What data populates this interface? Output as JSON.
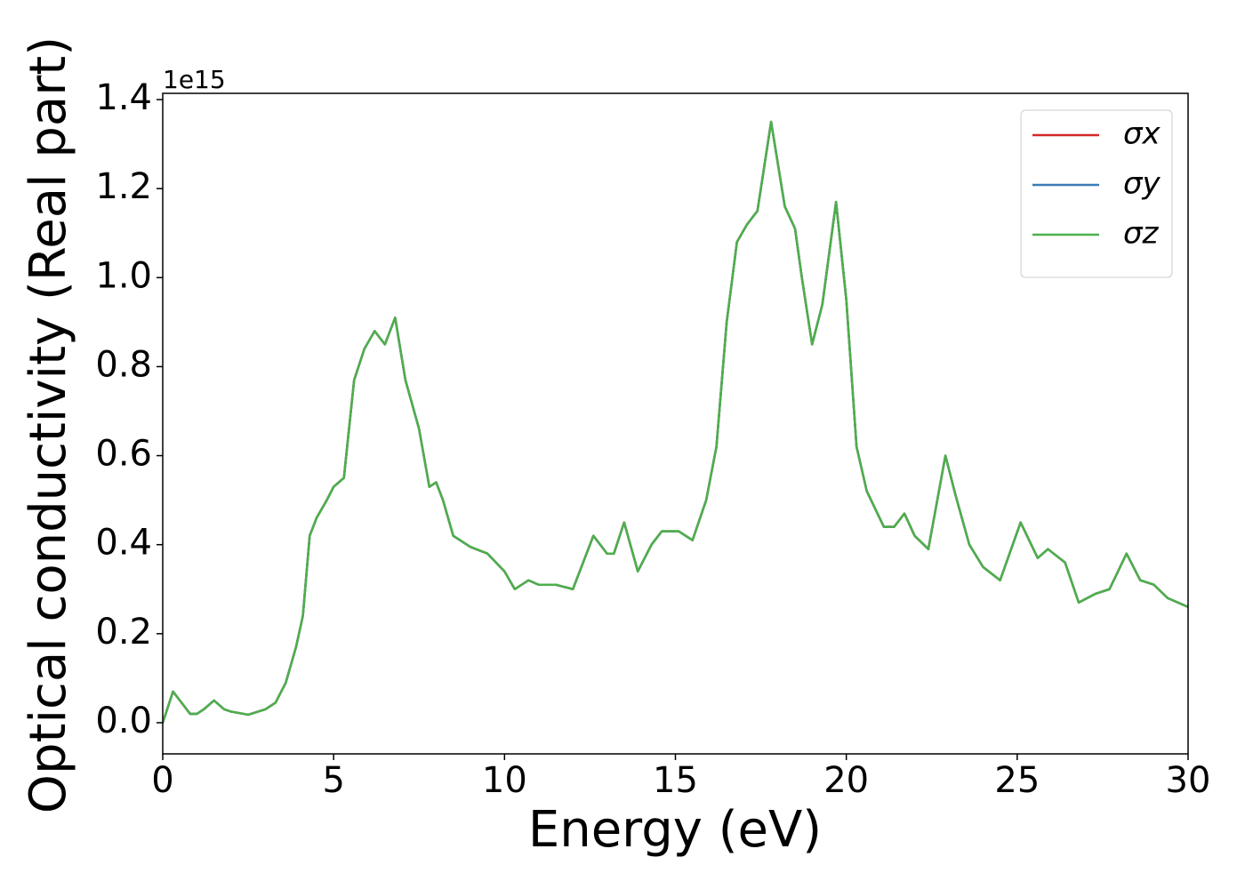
{
  "chart_data": {
    "type": "line",
    "xlabel": "Energy (eV)",
    "ylabel": "Optical conductivity (Real part)",
    "y_offset_text": "1e15",
    "x": [
      0,
      0.3,
      0.5,
      0.8,
      1.0,
      1.2,
      1.5,
      1.8,
      2.0,
      2.5,
      3.0,
      3.3,
      3.6,
      3.9,
      4.1,
      4.3,
      4.5,
      4.8,
      5.0,
      5.3,
      5.6,
      5.9,
      6.2,
      6.5,
      6.8,
      7.1,
      7.5,
      7.8,
      8.0,
      8.2,
      8.5,
      9.0,
      9.5,
      10.0,
      10.3,
      10.7,
      11.0,
      11.5,
      12.0,
      12.6,
      13.0,
      13.2,
      13.5,
      13.9,
      14.3,
      14.6,
      15.1,
      15.5,
      15.9,
      16.2,
      16.5,
      16.8,
      17.1,
      17.4,
      17.8,
      18.2,
      18.5,
      18.7,
      19.0,
      19.3,
      19.7,
      20.0,
      20.3,
      20.6,
      21.1,
      21.4,
      21.7,
      22.0,
      22.4,
      22.9,
      23.2,
      23.6,
      24.0,
      24.5,
      25.1,
      25.6,
      25.9,
      26.4,
      26.8,
      27.3,
      27.7,
      28.2,
      28.6,
      29.0,
      29.4,
      30.0
    ],
    "series": [
      {
        "name": "σx",
        "color": "#d62728",
        "values": [
          0,
          0.07,
          0.05,
          0.02,
          0.02,
          0.03,
          0.05,
          0.03,
          0.025,
          0.018,
          0.03,
          0.045,
          0.09,
          0.17,
          0.24,
          0.42,
          0.46,
          0.5,
          0.53,
          0.55,
          0.77,
          0.84,
          0.88,
          0.85,
          0.91,
          0.77,
          0.66,
          0.53,
          0.54,
          0.5,
          0.42,
          0.395,
          0.38,
          0.34,
          0.3,
          0.32,
          0.31,
          0.31,
          0.3,
          0.42,
          0.38,
          0.38,
          0.45,
          0.34,
          0.4,
          0.43,
          0.43,
          0.41,
          0.5,
          0.62,
          0.9,
          1.08,
          1.12,
          1.15,
          1.35,
          1.16,
          1.11,
          1.0,
          0.85,
          0.94,
          1.17,
          0.95,
          0.62,
          0.52,
          0.44,
          0.44,
          0.47,
          0.42,
          0.39,
          0.6,
          0.51,
          0.4,
          0.35,
          0.32,
          0.45,
          0.37,
          0.39,
          0.36,
          0.27,
          0.29,
          0.3,
          0.38,
          0.32,
          0.31,
          0.28,
          0.26
        ]
      },
      {
        "name": "σy",
        "color": "#3a7bb5",
        "values": [
          0,
          0.07,
          0.05,
          0.02,
          0.02,
          0.03,
          0.05,
          0.03,
          0.025,
          0.018,
          0.03,
          0.045,
          0.09,
          0.17,
          0.24,
          0.42,
          0.46,
          0.5,
          0.53,
          0.55,
          0.77,
          0.84,
          0.88,
          0.85,
          0.91,
          0.77,
          0.66,
          0.53,
          0.54,
          0.5,
          0.42,
          0.395,
          0.38,
          0.34,
          0.3,
          0.32,
          0.31,
          0.31,
          0.3,
          0.42,
          0.38,
          0.38,
          0.45,
          0.34,
          0.4,
          0.43,
          0.43,
          0.41,
          0.5,
          0.62,
          0.9,
          1.08,
          1.12,
          1.15,
          1.35,
          1.16,
          1.11,
          1.0,
          0.85,
          0.94,
          1.17,
          0.95,
          0.62,
          0.52,
          0.44,
          0.44,
          0.47,
          0.42,
          0.39,
          0.6,
          0.51,
          0.4,
          0.35,
          0.32,
          0.45,
          0.37,
          0.39,
          0.36,
          0.27,
          0.29,
          0.3,
          0.38,
          0.32,
          0.31,
          0.28,
          0.26
        ]
      },
      {
        "name": "σz",
        "color": "#4daf4a",
        "values": [
          0,
          0.07,
          0.05,
          0.02,
          0.02,
          0.03,
          0.05,
          0.03,
          0.025,
          0.018,
          0.03,
          0.045,
          0.09,
          0.17,
          0.24,
          0.42,
          0.46,
          0.5,
          0.53,
          0.55,
          0.77,
          0.84,
          0.88,
          0.85,
          0.91,
          0.77,
          0.66,
          0.53,
          0.54,
          0.5,
          0.42,
          0.395,
          0.38,
          0.34,
          0.3,
          0.32,
          0.31,
          0.31,
          0.3,
          0.42,
          0.38,
          0.38,
          0.45,
          0.34,
          0.4,
          0.43,
          0.43,
          0.41,
          0.5,
          0.62,
          0.9,
          1.08,
          1.12,
          1.15,
          1.35,
          1.16,
          1.11,
          1.0,
          0.85,
          0.94,
          1.17,
          0.95,
          0.62,
          0.52,
          0.44,
          0.44,
          0.47,
          0.42,
          0.39,
          0.6,
          0.51,
          0.4,
          0.35,
          0.32,
          0.45,
          0.37,
          0.39,
          0.36,
          0.27,
          0.29,
          0.3,
          0.38,
          0.32,
          0.31,
          0.28,
          0.26
        ]
      }
    ],
    "xlim": [
      0,
      30
    ],
    "xticks": [
      0,
      5,
      10,
      15,
      20,
      25,
      30
    ],
    "ylim": [
      -0.07,
      1.414
    ],
    "yticks": [
      {
        "value": 0,
        "label": "0.0"
      },
      0.2,
      0.4,
      0.6,
      0.8,
      {
        "value": 1,
        "label": "1.0"
      },
      1.2,
      1.4
    ],
    "grid": false,
    "legend": "upper right"
  }
}
